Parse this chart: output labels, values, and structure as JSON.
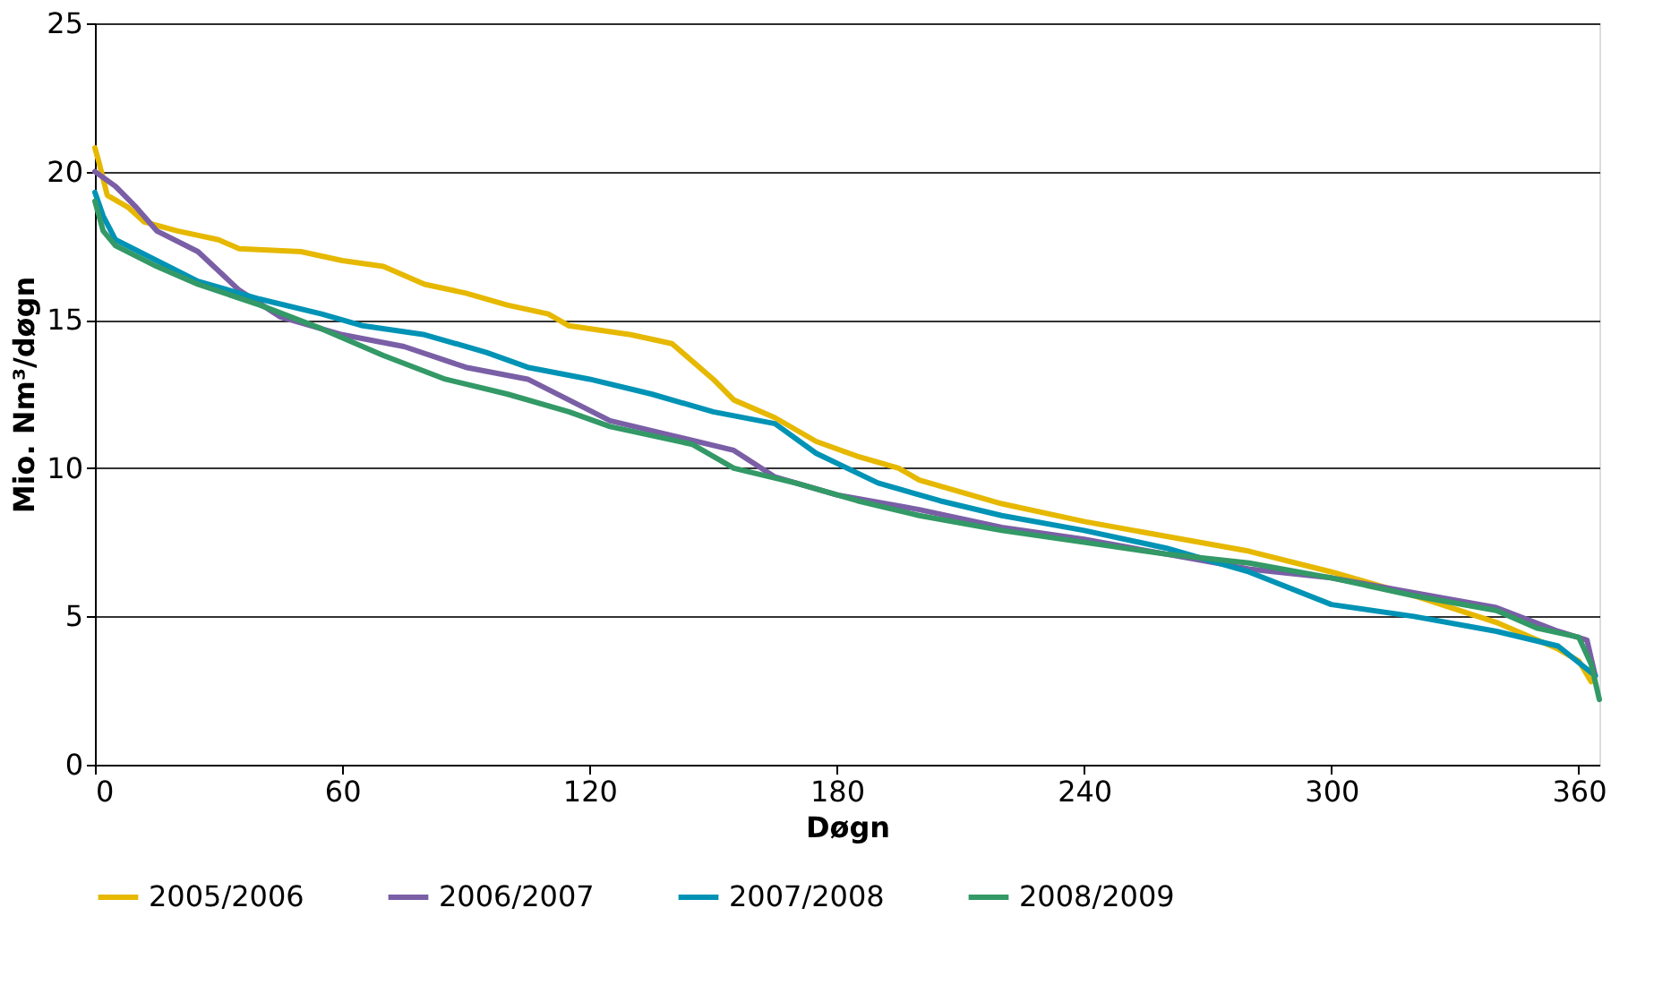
{
  "chart_data": {
    "type": "line",
    "xlabel": "Døgn",
    "ylabel": "Mio. Nm³/døgn",
    "xlim": [
      0,
      365
    ],
    "xticks": [
      0,
      60,
      120,
      180,
      240,
      300,
      360
    ],
    "ylim": [
      0,
      25
    ],
    "yticks": [
      0,
      5,
      10,
      15,
      20,
      25
    ],
    "grid": "y",
    "legend": "bottom",
    "marker": "none",
    "line_style": "solid",
    "series": [
      {
        "name": "2005/2006",
        "color": "#e6b800",
        "x": [
          0,
          1,
          3,
          8,
          12,
          20,
          30,
          35,
          50,
          60,
          70,
          80,
          90,
          100,
          110,
          115,
          130,
          140,
          150,
          155,
          165,
          175,
          185,
          195,
          200,
          210,
          220,
          240,
          260,
          280,
          300,
          320,
          340,
          355,
          360,
          363
        ],
        "values": [
          20.8,
          20.3,
          19.2,
          18.8,
          18.3,
          18.0,
          17.7,
          17.4,
          17.3,
          17.0,
          16.8,
          16.2,
          15.9,
          15.5,
          15.2,
          14.8,
          14.5,
          14.2,
          13.0,
          12.3,
          11.7,
          10.9,
          10.4,
          10.0,
          9.6,
          9.2,
          8.8,
          8.2,
          7.7,
          7.2,
          6.5,
          5.7,
          4.8,
          3.9,
          3.5,
          2.8
        ]
      },
      {
        "name": "2006/2007",
        "color": "#7a5fa6",
        "x": [
          0,
          5,
          10,
          15,
          25,
          35,
          45,
          60,
          75,
          90,
          105,
          115,
          125,
          140,
          155,
          165,
          180,
          200,
          220,
          240,
          260,
          280,
          300,
          320,
          340,
          355,
          362,
          364
        ],
        "values": [
          20.0,
          19.5,
          18.8,
          18.0,
          17.3,
          16.0,
          15.1,
          14.5,
          14.1,
          13.4,
          13.0,
          12.3,
          11.6,
          11.1,
          10.6,
          9.7,
          9.1,
          8.6,
          8.0,
          7.6,
          7.1,
          6.6,
          6.3,
          5.8,
          5.3,
          4.5,
          4.2,
          3.0
        ]
      },
      {
        "name": "2007/2008",
        "color": "#0093b5",
        "x": [
          0,
          2,
          5,
          15,
          25,
          40,
          55,
          65,
          80,
          95,
          105,
          120,
          135,
          150,
          165,
          175,
          190,
          205,
          220,
          240,
          260,
          280,
          300,
          320,
          340,
          355,
          364
        ],
        "values": [
          19.3,
          18.5,
          17.7,
          17.0,
          16.3,
          15.7,
          15.2,
          14.8,
          14.5,
          13.9,
          13.4,
          13.0,
          12.5,
          11.9,
          11.5,
          10.5,
          9.5,
          8.9,
          8.4,
          7.9,
          7.3,
          6.5,
          5.4,
          5.0,
          4.5,
          4.0,
          3.0
        ]
      },
      {
        "name": "2008/2009",
        "color": "#339966",
        "x": [
          0,
          2,
          5,
          15,
          25,
          40,
          55,
          70,
          85,
          100,
          115,
          125,
          145,
          155,
          170,
          185,
          200,
          220,
          240,
          260,
          280,
          300,
          320,
          340,
          350,
          360,
          363,
          365
        ],
        "values": [
          19.0,
          18.0,
          17.5,
          16.8,
          16.2,
          15.5,
          14.7,
          13.8,
          13.0,
          12.5,
          11.9,
          11.4,
          10.8,
          10.0,
          9.5,
          8.9,
          8.4,
          7.9,
          7.5,
          7.1,
          6.8,
          6.3,
          5.7,
          5.2,
          4.6,
          4.3,
          3.4,
          2.2
        ]
      }
    ]
  }
}
